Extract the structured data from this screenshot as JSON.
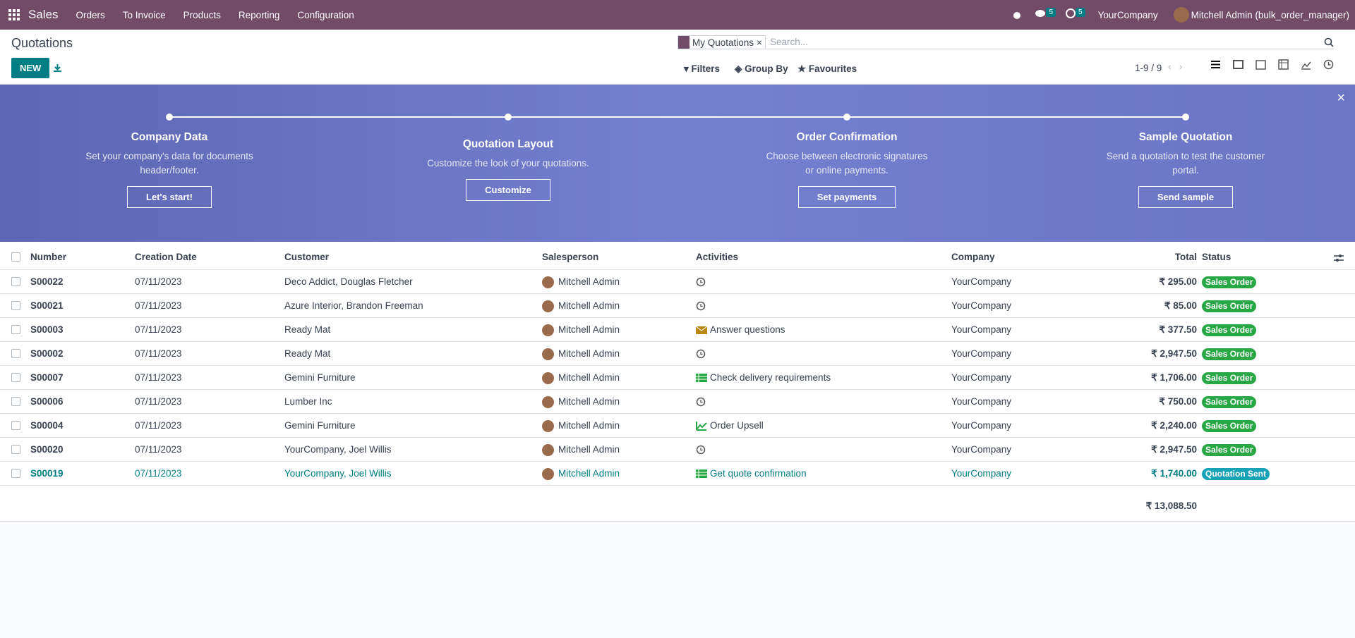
{
  "navbar": {
    "app": "Sales",
    "menu": [
      "Orders",
      "To Invoice",
      "Products",
      "Reporting",
      "Configuration"
    ],
    "chat_count": "5",
    "activity_count": "5",
    "company": "YourCompany",
    "user": "Mitchell Admin (bulk_order_manager)"
  },
  "control": {
    "title": "Quotations",
    "new": "NEW",
    "facet": "My Quotations",
    "search_placeholder": "Search...",
    "filters": "Filters",
    "group_by": "Group By",
    "favourites": "Favourites",
    "pager": "1-9 / 9"
  },
  "banner": {
    "steps": [
      {
        "title": "Company Data",
        "description": "Set your company's data for documents header/footer.",
        "button": "Let's start!"
      },
      {
        "title": "Quotation Layout",
        "description": "Customize the look of your quotations.",
        "button": "Customize"
      },
      {
        "title": "Order Confirmation",
        "description": "Choose between electronic signatures or online payments.",
        "button": "Set payments"
      },
      {
        "title": "Sample Quotation",
        "description": "Send a quotation to test the customer portal.",
        "button": "Send sample"
      }
    ]
  },
  "table": {
    "columns": [
      "Number",
      "Creation Date",
      "Customer",
      "Salesperson",
      "Activities",
      "Company",
      "Total",
      "Status"
    ],
    "rows": [
      {
        "cells": [
          "S00022",
          "07/11/2023",
          "Deco Addict, Douglas Fletcher",
          "Mitchell Admin",
          "",
          "YourCompany",
          "₹ 295.00",
          "Sales Order"
        ],
        "activity_icon": "clock",
        "badge_color": "#28a745",
        "text_color": "#374151"
      },
      {
        "cells": [
          "S00021",
          "07/11/2023",
          "Azure Interior, Brandon Freeman",
          "Mitchell Admin",
          "",
          "YourCompany",
          "₹ 85.00",
          "Sales Order"
        ],
        "activity_icon": "clock",
        "badge_color": "#28a745",
        "text_color": "#374151"
      },
      {
        "cells": [
          "S00003",
          "07/11/2023",
          "Ready Mat",
          "Mitchell Admin",
          "Answer questions",
          "YourCompany",
          "₹ 377.50",
          "Sales Order"
        ],
        "activity_icon": "mail",
        "badge_color": "#28a745",
        "text_color": "#374151"
      },
      {
        "cells": [
          "S00002",
          "07/11/2023",
          "Ready Mat",
          "Mitchell Admin",
          "",
          "YourCompany",
          "₹ 2,947.50",
          "Sales Order"
        ],
        "activity_icon": "clock",
        "badge_color": "#28a745",
        "text_color": "#374151"
      },
      {
        "cells": [
          "S00007",
          "07/11/2023",
          "Gemini Furniture",
          "Mitchell Admin",
          "Check delivery requirements",
          "YourCompany",
          "₹ 1,706.00",
          "Sales Order"
        ],
        "activity_icon": "list",
        "badge_color": "#28a745",
        "text_color": "#374151"
      },
      {
        "cells": [
          "S00006",
          "07/11/2023",
          "Lumber Inc",
          "Mitchell Admin",
          "",
          "YourCompany",
          "₹ 750.00",
          "Sales Order"
        ],
        "activity_icon": "clock",
        "badge_color": "#28a745",
        "text_color": "#374151"
      },
      {
        "cells": [
          "S00004",
          "07/11/2023",
          "Gemini Furniture",
          "Mitchell Admin",
          "Order Upsell",
          "YourCompany",
          "₹ 2,240.00",
          "Sales Order"
        ],
        "activity_icon": "chart",
        "badge_color": "#28a745",
        "text_color": "#374151"
      },
      {
        "cells": [
          "S00020",
          "07/11/2023",
          "YourCompany, Joel Willis",
          "Mitchell Admin",
          "",
          "YourCompany",
          "₹ 2,947.50",
          "Sales Order"
        ],
        "activity_icon": "clock",
        "badge_color": "#28a745",
        "text_color": "#374151"
      },
      {
        "cells": [
          "S00019",
          "07/11/2023",
          "YourCompany, Joel Willis",
          "Mitchell Admin",
          "Get quote confirmation",
          "YourCompany",
          "₹ 1,740.00",
          "Quotation Sent"
        ],
        "activity_icon": "list",
        "badge_color": "#17a2b8",
        "text_color": "#017e84"
      }
    ],
    "total": "₹ 13,088.50"
  }
}
